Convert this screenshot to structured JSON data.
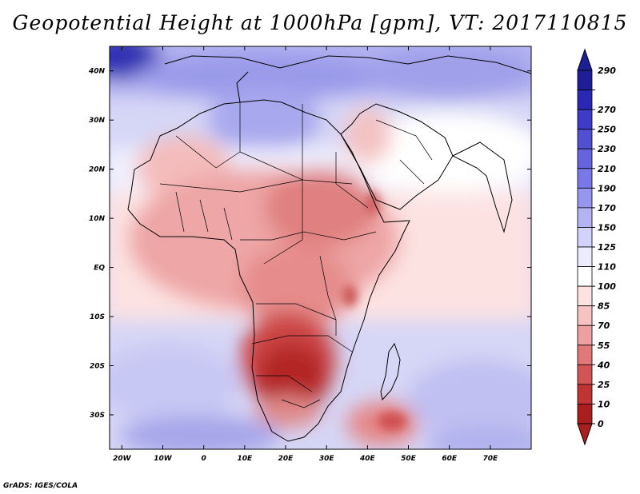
{
  "title": "Geopotential Height at 1000hPa [gpm], VT: 2017110815",
  "credit": "GrADS: IGES/COLA",
  "map": {
    "lon_range": [
      -23,
      80
    ],
    "lat_range": [
      -37,
      45
    ],
    "lat_ticks": [
      {
        "value": 40,
        "label": "40N"
      },
      {
        "value": 30,
        "label": "30N"
      },
      {
        "value": 20,
        "label": "20N"
      },
      {
        "value": 10,
        "label": "10N"
      },
      {
        "value": 0,
        "label": "EQ"
      },
      {
        "value": -10,
        "label": "10S"
      },
      {
        "value": -20,
        "label": "20S"
      },
      {
        "value": -30,
        "label": "30S"
      }
    ],
    "lon_ticks": [
      {
        "value": -20,
        "label": "20W"
      },
      {
        "value": -10,
        "label": "10W"
      },
      {
        "value": 0,
        "label": "0"
      },
      {
        "value": 10,
        "label": "10E"
      },
      {
        "value": 20,
        "label": "20E"
      },
      {
        "value": 30,
        "label": "30E"
      },
      {
        "value": 40,
        "label": "40E"
      },
      {
        "value": 50,
        "label": "50E"
      },
      {
        "value": 60,
        "label": "60E"
      },
      {
        "value": 70,
        "label": "70E"
      }
    ]
  },
  "colorbar": {
    "levels": [
      "290",
      "270",
      "250",
      "230",
      "210",
      "190",
      "170",
      "150",
      "125",
      "110",
      "100",
      "85",
      "70",
      "55",
      "40",
      "25",
      "10",
      "0"
    ],
    "colors": [
      "#1e1e96",
      "#2828b4",
      "#3c3cc8",
      "#5050d2",
      "#6464dc",
      "#7878e6",
      "#9696ee",
      "#b4b4f4",
      "#d2d2fa",
      "#ececfd",
      "#ffffff",
      "#fde2e2",
      "#f8c2c2",
      "#eea0a0",
      "#e07878",
      "#d25454",
      "#c03434",
      "#aa1e1e"
    ]
  }
}
